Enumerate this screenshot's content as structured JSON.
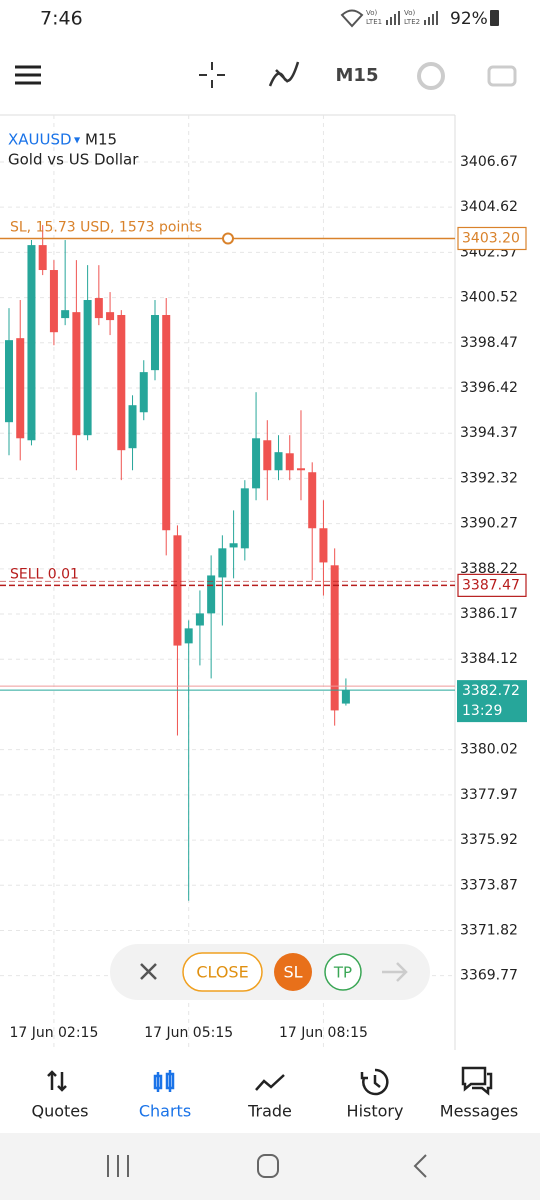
{
  "status_bar": {
    "time": "7:46",
    "battery": "92%"
  },
  "toolbar": {
    "timeframe": "M15"
  },
  "chart_data": {
    "type": "candlestick",
    "symbol": "XAUUSD",
    "timeframe": "M15",
    "subtitle": "Gold vs US Dollar",
    "categories": [
      null,
      null,
      null,
      null,
      "17 Jun 02:15",
      null,
      null,
      null,
      null,
      null,
      null,
      null,
      null,
      null,
      null,
      null,
      "17 Jun 05:15",
      null,
      null,
      null,
      null,
      null,
      null,
      null,
      null,
      null,
      null,
      null,
      "17 Jun 08:15",
      null,
      null
    ],
    "open": [
      3394.87,
      3398.68,
      3394.05,
      3402.9,
      3401.77,
      3399.59,
      3399.86,
      3394.28,
      3400.5,
      3399.86,
      3399.73,
      3393.69,
      3395.32,
      3397.23,
      3399.73,
      3389.74,
      3384.84,
      3385.65,
      3386.2,
      3387.83,
      3389.19,
      3389.15,
      3391.87,
      3394.05,
      3392.69,
      3393.46,
      3392.78,
      3392.6,
      3390.06,
      3388.38,
      3382.11
    ],
    "high": [
      3400.04,
      3400.41,
      3403.13,
      3403.81,
      3402.22,
      3403.13,
      3402.22,
      3401.99,
      3401.99,
      3400.77,
      3399.95,
      3396.09,
      3397.68,
      3400.41,
      3400.5,
      3390.19,
      3385.88,
      3387.24,
      3388.83,
      3389.74,
      3390.87,
      3392.24,
      3396.23,
      3394.96,
      3394.28,
      3394.28,
      3395.41,
      3393.05,
      3391.33,
      3389.15,
      3383.25
    ],
    "low": [
      3393.37,
      3393.14,
      3393.82,
      3401.54,
      3398.36,
      3399.27,
      3392.69,
      3394.05,
      3399.27,
      3398.82,
      3392.24,
      3392.69,
      3394.96,
      3396.77,
      3388.83,
      3380.66,
      3373.17,
      3383.84,
      3383.25,
      3385.65,
      3387.79,
      3388.6,
      3391.33,
      3391.33,
      3392.24,
      3392.24,
      3391.33,
      3387.7,
      3387.01,
      3381.11,
      3382.02
    ],
    "close": [
      3398.59,
      3394.14,
      3402.9,
      3401.77,
      3398.95,
      3399.95,
      3394.28,
      3400.41,
      3399.59,
      3399.5,
      3393.6,
      3395.64,
      3397.14,
      3399.73,
      3389.97,
      3384.74,
      3385.52,
      3386.2,
      3387.92,
      3389.15,
      3389.38,
      3391.87,
      3394.14,
      3392.69,
      3393.51,
      3392.69,
      3392.69,
      3390.06,
      3388.51,
      3381.8,
      3382.72
    ],
    "up_color": "#26a69a",
    "down_color": "#ef5350",
    "ylim": [
      3366.4,
      3408.8
    ],
    "yticks": [
      3406.67,
      3404.62,
      3402.57,
      3400.52,
      3398.47,
      3396.42,
      3394.37,
      3392.32,
      3390.27,
      3388.22,
      3386.17,
      3384.12,
      3380.02,
      3377.97,
      3375.92,
      3373.87,
      3371.82,
      3369.77
    ],
    "grid": true,
    "levels": [
      {
        "label": "SL, 15.73 USD, 1573 points",
        "value": 3403.2,
        "value_label": "3403.20",
        "color": "#d9822b"
      },
      {
        "label": "SELL 0.01",
        "value": 3387.47,
        "color": "#b71c1c"
      }
    ],
    "current_price": {
      "value": 3382.72,
      "timer": "13:29",
      "color": "#26a69a"
    }
  },
  "trade_buttons": {
    "close": "CLOSE",
    "sl": "SL",
    "tp": "TP"
  },
  "nav": {
    "items": [
      "Quotes",
      "Charts",
      "Trade",
      "History",
      "Messages"
    ],
    "active_index": 1
  }
}
